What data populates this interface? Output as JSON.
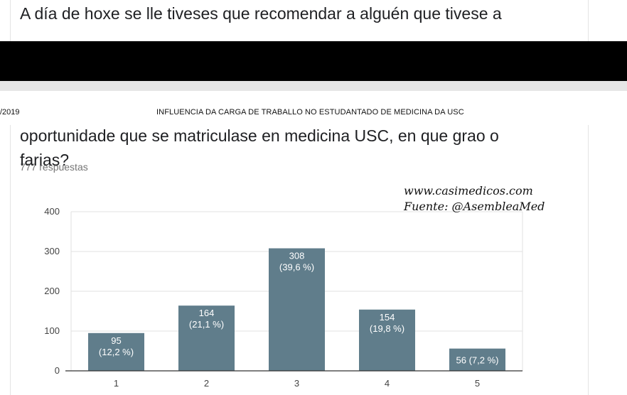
{
  "question": {
    "top_text": "A día de hoxe se lle tiveses que recomendar a alguén que tivese a",
    "line1": "oportunidade que se matriculase en medicina USC, en que grao o",
    "line2": "farias?",
    "responses": "777 respuestas"
  },
  "print": {
    "date": "/2019",
    "header": "INFLUENCIA DA CARGA DE TRABALLO NO ESTUDANTADO DE MEDICINA DA USC"
  },
  "watermark": {
    "line1": "www.casimedicos.com",
    "line2": "Fuente: @AsembleaMed"
  },
  "colors": {
    "bar": "#607d8b",
    "grid": "#e0e0e0",
    "axis": "#333333"
  },
  "chart_data": {
    "type": "bar",
    "categories": [
      "1",
      "2",
      "3",
      "4",
      "5"
    ],
    "values": [
      95,
      164,
      308,
      154,
      56
    ],
    "data_labels": [
      "95\n(12,2 %)",
      "164\n(21,1 %)",
      "308\n(39,6 %)",
      "154\n(19,8 %)",
      "56 (7,2 %)"
    ],
    "ylim": [
      0,
      400
    ],
    "yticks": [
      0,
      100,
      200,
      300,
      400
    ],
    "grid": true,
    "title": "",
    "xlabel": "",
    "ylabel": ""
  }
}
